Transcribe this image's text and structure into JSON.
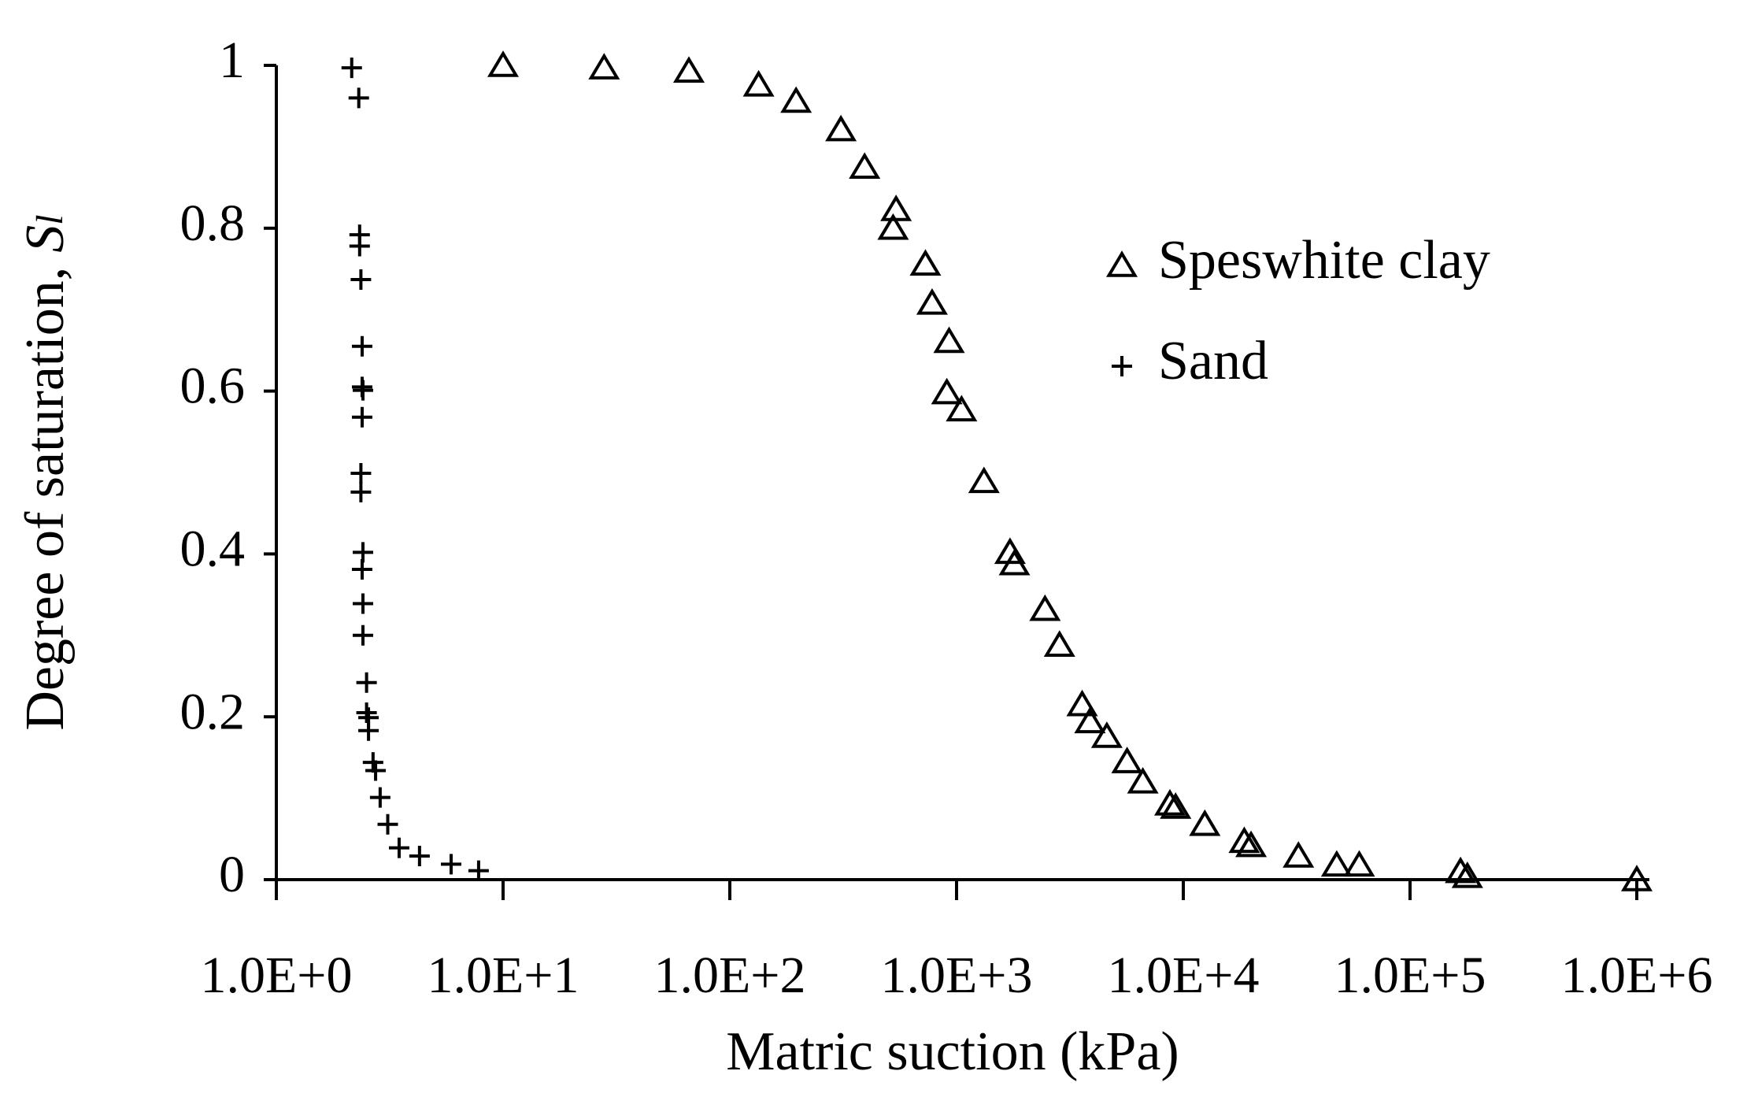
{
  "chart_data": {
    "type": "scatter",
    "xlabel": "Matric suction (kPa)",
    "ylabel": {
      "text": "Degree of saturation,",
      "symbol": "S",
      "subscript": "l"
    },
    "xscale": "log",
    "xlim": [
      1,
      1000000
    ],
    "ylim": [
      0,
      1
    ],
    "xticks": [
      {
        "value": 1,
        "label": "1.0E+0"
      },
      {
        "value": 10,
        "label": "1.0E+1"
      },
      {
        "value": 100,
        "label": "1.0E+2"
      },
      {
        "value": 1000,
        "label": "1.0E+3"
      },
      {
        "value": 10000,
        "label": "1.0E+4"
      },
      {
        "value": 100000,
        "label": "1.0E+5"
      },
      {
        "value": 1000000,
        "label": "1.0E+6"
      }
    ],
    "yticks": [
      0,
      0.2,
      0.4,
      0.6,
      0.8,
      1
    ],
    "grid": false,
    "legend": "upper right",
    "series": [
      {
        "name": "Speswhite clay",
        "marker": "triangle",
        "color": "#000000",
        "x": [
          10,
          27.9,
          66,
          134,
          196,
          309,
          393,
          541,
          525,
          729,
          780,
          927,
          906,
          1052,
          1321,
          1721,
          1800,
          2455,
          2845,
          3580,
          3875,
          4600,
          5650,
          6630,
          8730,
          9250,
          12440,
          18570,
          19900,
          32200,
          47500,
          59700,
          167000,
          179000,
          1000000
        ],
        "values": [
          1.0,
          0.997,
          0.993,
          0.976,
          0.956,
          0.921,
          0.875,
          0.823,
          0.8,
          0.756,
          0.708,
          0.661,
          0.598,
          0.577,
          0.489,
          0.402,
          0.388,
          0.332,
          0.288,
          0.215,
          0.194,
          0.176,
          0.145,
          0.12,
          0.093,
          0.089,
          0.068,
          0.047,
          0.042,
          0.029,
          0.018,
          0.018,
          0.01,
          0.004,
          0.0
        ]
      },
      {
        "name": "Sand",
        "marker": "plus",
        "color": "#000000",
        "x": [
          2.15,
          2.31,
          2.33,
          2.33,
          2.36,
          2.39,
          2.39,
          2.41,
          2.39,
          2.36,
          2.36,
          2.41,
          2.39,
          2.41,
          2.41,
          2.5,
          2.5,
          2.55,
          2.55,
          2.67,
          2.74,
          2.87,
          3.1,
          3.48,
          4.28,
          5.9,
          7.8
        ],
        "values": [
          0.997,
          0.96,
          0.792,
          0.778,
          0.737,
          0.655,
          0.605,
          0.601,
          0.568,
          0.499,
          0.476,
          0.402,
          0.381,
          0.339,
          0.3,
          0.242,
          0.205,
          0.199,
          0.183,
          0.144,
          0.134,
          0.101,
          0.068,
          0.039,
          0.029,
          0.019,
          0.011
        ]
      }
    ]
  }
}
